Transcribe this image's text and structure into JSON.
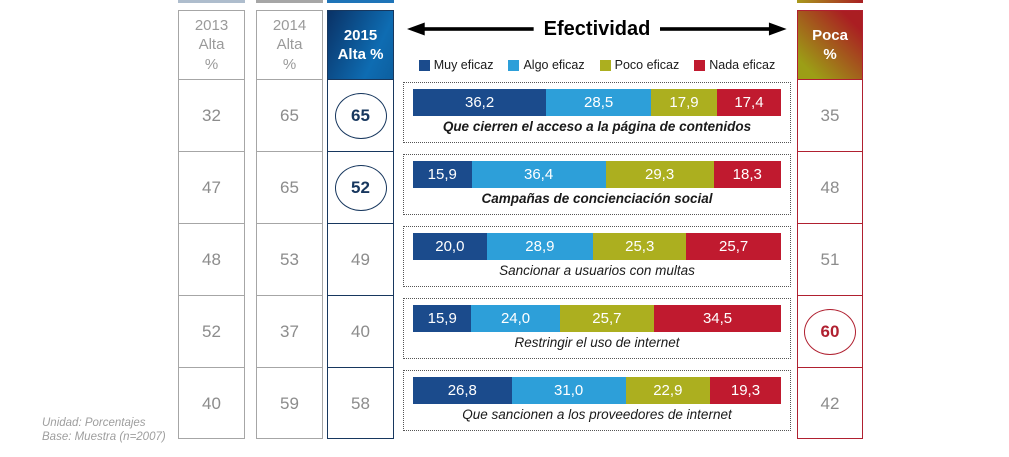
{
  "title": "Efectividad",
  "header": {
    "col_2013": {
      "line1": "2013",
      "line2": "Alta",
      "line3": "%"
    },
    "col_2014": {
      "line1": "2014",
      "line2": "Alta",
      "line3": "%"
    },
    "col_2015": {
      "line1": "2015",
      "line2": "Alta %"
    },
    "col_poca": {
      "line1": "Poca",
      "line2": "%"
    }
  },
  "legend": [
    {
      "label": "Muy eficaz",
      "color": "#1b4b8c"
    },
    {
      "label": "Algo eficaz",
      "color": "#2d9fd9"
    },
    {
      "label": "Poco eficaz",
      "color": "#acaf1f"
    },
    {
      "label": "Nada eficaz",
      "color": "#c01a2f"
    }
  ],
  "rows": [
    {
      "label": "Que cierren el acceso a la página de contenidos",
      "alta_2013": "32",
      "alta_2014": "65",
      "alta_2015": "65",
      "poca": "35",
      "segments": [
        "36,2",
        "28,5",
        "17,9",
        "17,4"
      ]
    },
    {
      "label": "Campañas de concienciación social",
      "alta_2013": "47",
      "alta_2014": "65",
      "alta_2015": "52",
      "poca": "48",
      "segments": [
        "15,9",
        "36,4",
        "29,3",
        "18,3"
      ]
    },
    {
      "label": "Sancionar a usuarios con multas",
      "alta_2013": "48",
      "alta_2014": "53",
      "alta_2015": "49",
      "poca": "51",
      "segments": [
        "20,0",
        "28,9",
        "25,3",
        "25,7"
      ]
    },
    {
      "label": "Restringir el uso de internet",
      "alta_2013": "52",
      "alta_2014": "37",
      "alta_2015": "40",
      "poca": "60",
      "segments": [
        "15,9",
        "24,0",
        "25,7",
        "34,5"
      ]
    },
    {
      "label": "Que sancionen a los proveedores de internet",
      "alta_2013": "40",
      "alta_2014": "59",
      "alta_2015": "58",
      "poca": "42",
      "segments": [
        "26,8",
        "31,0",
        "22,9",
        "19,3"
      ]
    }
  ],
  "highlights": {
    "alta_2015_circled_rows": [
      0,
      1
    ],
    "poca_circled_rows": [
      3
    ]
  },
  "footnote": {
    "line1": "Unidad: Porcentajes",
    "line2": "Base: Muestra (n=2007)"
  },
  "chart_data": {
    "type": "bar",
    "subtype": "horizontal-stacked-100pct",
    "title": "Efectividad",
    "unit": "Porcentajes",
    "base": "Muestra (n=2007)",
    "legend_position": "top",
    "categories": [
      "Que cierren el acceso a la página de contenidos",
      "Campañas de concienciación social",
      "Sancionar a usuarios con multas",
      "Restringir el uso de internet",
      "Que sancionen a los proveedores de internet"
    ],
    "series": [
      {
        "name": "Muy eficaz",
        "values": [
          36.2,
          15.9,
          20.0,
          15.9,
          26.8
        ]
      },
      {
        "name": "Algo eficaz",
        "values": [
          28.5,
          36.4,
          28.9,
          24.0,
          31.0
        ]
      },
      {
        "name": "Poco eficaz",
        "values": [
          17.9,
          29.3,
          25.3,
          25.7,
          22.9
        ]
      },
      {
        "name": "Nada eficaz",
        "values": [
          17.4,
          18.3,
          25.7,
          34.5,
          19.3
        ]
      }
    ],
    "extra_columns": [
      {
        "name": "2013 Alta %",
        "values": [
          32,
          47,
          48,
          52,
          40
        ]
      },
      {
        "name": "2014 Alta %",
        "values": [
          65,
          65,
          53,
          37,
          59
        ]
      },
      {
        "name": "2015 Alta %",
        "values": [
          65,
          52,
          49,
          40,
          58
        ]
      },
      {
        "name": "Poca %",
        "values": [
          35,
          48,
          51,
          60,
          42
        ]
      }
    ],
    "xlim": [
      0,
      100
    ]
  }
}
